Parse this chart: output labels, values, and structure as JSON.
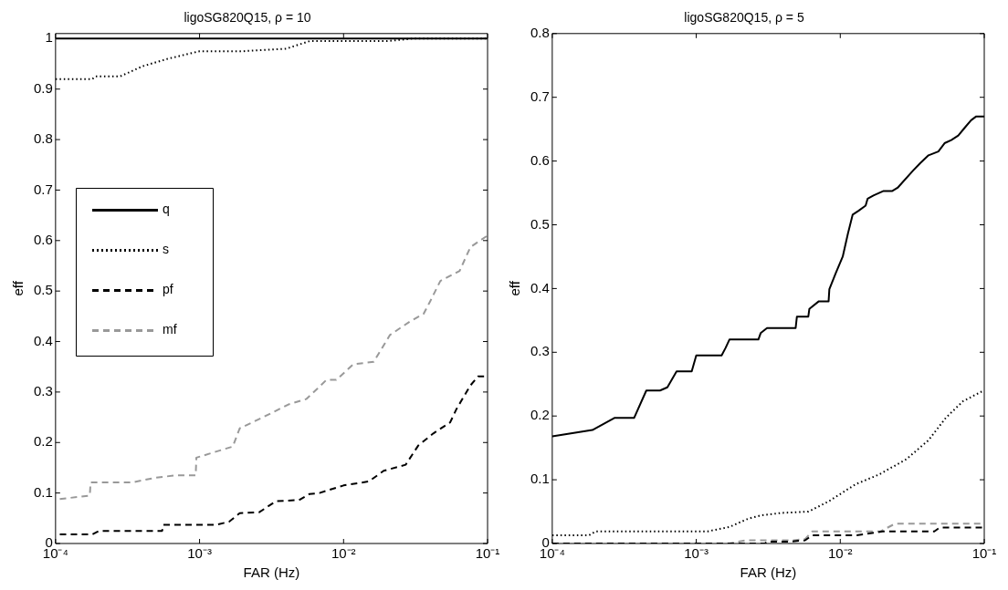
{
  "chart_data": [
    {
      "type": "line",
      "title": "ligoSG820Q15, ρ = 10",
      "xlabel": "FAR (Hz)",
      "ylabel": "eff",
      "log": "x",
      "xlim": [
        0.0001,
        0.1
      ],
      "xticks": [
        {
          "value": 0.0001,
          "label": "10⁻⁴"
        },
        {
          "value": 0.001,
          "label": "10⁻³"
        },
        {
          "value": 0.01,
          "label": "10⁻²"
        },
        {
          "value": 0.1,
          "label": "10⁻¹"
        }
      ],
      "ylim": [
        0,
        1.01
      ],
      "yticks": [
        0,
        0.1,
        0.2,
        0.3,
        0.4,
        0.5,
        0.6,
        0.7,
        0.8,
        0.9,
        1
      ],
      "grid": false,
      "legend": "left",
      "marker": "none",
      "series": [
        {
          "name": "q",
          "color": "#000000",
          "line_style": "solid",
          "x": [
            0.0001,
            0.1
          ],
          "values": [
            1,
            1
          ]
        },
        {
          "name": "s",
          "color": "#000000",
          "line_style": "dotted",
          "x": [
            0.0001,
            0.00018,
            0.00019,
            0.00028,
            0.0004,
            0.0006,
            0.001,
            0.002,
            0.004,
            0.0058,
            0.02,
            0.03,
            0.1
          ],
          "values": [
            0.92,
            0.92,
            0.925,
            0.925,
            0.945,
            0.96,
            0.975,
            0.975,
            0.98,
            0.995,
            0.995,
            1.0,
            1.0
          ]
        },
        {
          "name": "pf",
          "color": "#000000",
          "line_style": "dashed",
          "x": [
            0.000107,
            0.00018,
            0.0002,
            0.00055,
            0.00056,
            0.0013,
            0.0016,
            0.0019,
            0.0026,
            0.0034,
            0.0049,
            0.0058,
            0.0068,
            0.01,
            0.015,
            0.019,
            0.027,
            0.033,
            0.042,
            0.055,
            0.061,
            0.076,
            0.086,
            0.1
          ],
          "values": [
            0.018,
            0.018,
            0.025,
            0.025,
            0.037,
            0.037,
            0.043,
            0.06,
            0.062,
            0.084,
            0.086,
            0.098,
            0.1,
            0.115,
            0.123,
            0.144,
            0.156,
            0.194,
            0.218,
            0.24,
            0.267,
            0.313,
            0.331,
            0.331
          ]
        },
        {
          "name": "mf",
          "color": "#999999",
          "line_style": "dashed",
          "x": [
            0.000107,
            0.000173,
            0.000175,
            0.00034,
            0.00049,
            0.00068,
            0.00094,
            0.00095,
            0.0017,
            0.0019,
            0.00275,
            0.0042,
            0.0055,
            0.0066,
            0.0076,
            0.0089,
            0.0117,
            0.0162,
            0.021,
            0.029,
            0.036,
            0.04,
            0.047,
            0.064,
            0.076,
            0.1
          ],
          "values": [
            0.088,
            0.095,
            0.121,
            0.121,
            0.13,
            0.135,
            0.135,
            0.17,
            0.192,
            0.228,
            0.25,
            0.276,
            0.286,
            0.307,
            0.324,
            0.324,
            0.355,
            0.36,
            0.413,
            0.44,
            0.455,
            0.48,
            0.52,
            0.54,
            0.587,
            0.61
          ]
        }
      ]
    },
    {
      "type": "line",
      "title": "ligoSG820Q15, ρ = 5",
      "xlabel": "FAR (Hz)",
      "ylabel": "eff",
      "log": "x",
      "xlim": [
        0.0001,
        0.1
      ],
      "xticks": [
        {
          "value": 0.0001,
          "label": "10⁻⁴"
        },
        {
          "value": 0.001,
          "label": "10⁻³"
        },
        {
          "value": 0.01,
          "label": "10⁻²"
        },
        {
          "value": 0.1,
          "label": "10⁻¹"
        }
      ],
      "ylim": [
        0,
        0.8
      ],
      "yticks": [
        0,
        0.1,
        0.2,
        0.3,
        0.4,
        0.5,
        0.6,
        0.7,
        0.8
      ],
      "grid": false,
      "marker": "none",
      "series": [
        {
          "color": "#000000",
          "line_style": "solid",
          "x": [
            0.0001,
            0.00019,
            0.00027,
            0.00037,
            0.00045,
            0.00056,
            0.00063,
            0.00073,
            0.00093,
            0.001,
            0.0015,
            0.0016,
            0.0017,
            0.0027,
            0.0028,
            0.0031,
            0.0049,
            0.005,
            0.006,
            0.0061,
            0.0071,
            0.0083,
            0.0084,
            0.0093,
            0.0104,
            0.0113,
            0.0122,
            0.0134,
            0.015,
            0.0155,
            0.017,
            0.02,
            0.023,
            0.025,
            0.032,
            0.036,
            0.041,
            0.048,
            0.053,
            0.059,
            0.066,
            0.073,
            0.081,
            0.088,
            0.1
          ],
          "values": [
            0.168,
            0.178,
            0.197,
            0.197,
            0.24,
            0.24,
            0.245,
            0.27,
            0.27,
            0.295,
            0.295,
            0.307,
            0.32,
            0.32,
            0.33,
            0.338,
            0.338,
            0.356,
            0.356,
            0.368,
            0.38,
            0.38,
            0.399,
            0.424,
            0.45,
            0.486,
            0.516,
            0.522,
            0.53,
            0.541,
            0.546,
            0.553,
            0.553,
            0.558,
            0.585,
            0.597,
            0.609,
            0.615,
            0.628,
            0.633,
            0.64,
            0.652,
            0.664,
            0.67,
            0.67
          ]
        },
        {
          "color": "#000000",
          "line_style": "dotted",
          "x": [
            0.0001,
            0.00018,
            0.0002,
            0.0012,
            0.0017,
            0.0023,
            0.0028,
            0.0039,
            0.006,
            0.0083,
            0.0128,
            0.0185,
            0.0287,
            0.041,
            0.054,
            0.071,
            0.099
          ],
          "values": [
            0.013,
            0.013,
            0.019,
            0.019,
            0.026,
            0.039,
            0.044,
            0.048,
            0.05,
            0.066,
            0.093,
            0.108,
            0.132,
            0.162,
            0.197,
            0.223,
            0.24
          ]
        },
        {
          "color": "#000000",
          "line_style": "dashed",
          "x": [
            0.0001,
            0.003,
            0.0031,
            0.0045,
            0.0057,
            0.0064,
            0.013,
            0.0197,
            0.045,
            0.049,
            0.1
          ],
          "values": [
            0,
            0,
            0.003,
            0.003,
            0.005,
            0.013,
            0.013,
            0.019,
            0.019,
            0.025,
            0.025
          ]
        },
        {
          "color": "#999999",
          "line_style": "dashed",
          "x": [
            0.0001,
            0.0017,
            0.0022,
            0.0048,
            0.0057,
            0.0064,
            0.019,
            0.024,
            0.1
          ],
          "values": [
            0,
            0,
            0.005,
            0.005,
            0.007,
            0.019,
            0.019,
            0.031,
            0.031
          ]
        }
      ]
    }
  ]
}
